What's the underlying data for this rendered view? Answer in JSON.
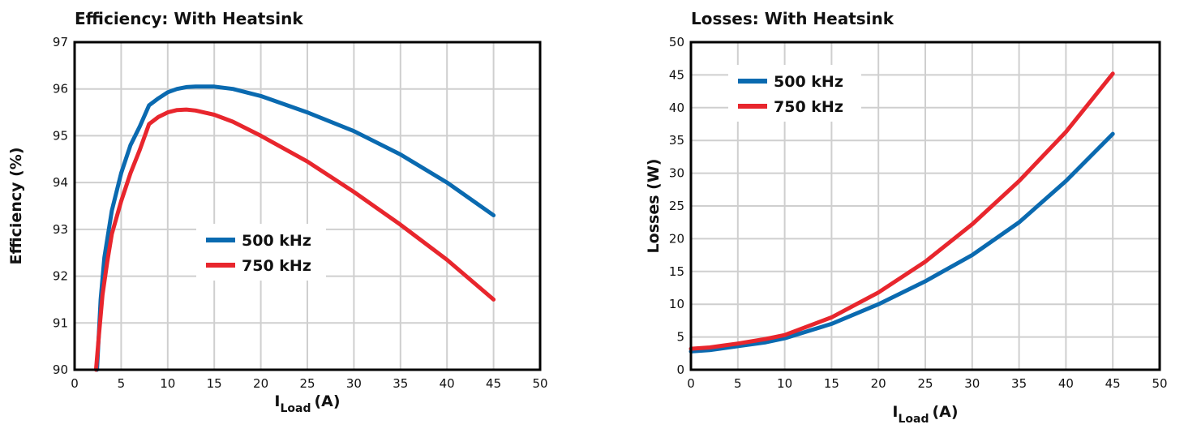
{
  "colors": {
    "series_500": "#0a6ab0",
    "series_750": "#e8262d"
  },
  "chart_data": [
    {
      "type": "line",
      "title": "Efficiency: With Heatsink",
      "xlabel": "I",
      "xlabel_sub": "Load",
      "xlabel_unit": "(A)",
      "ylabel": "Efficiency (%)",
      "xlim": [
        0,
        50
      ],
      "ylim": [
        90,
        97
      ],
      "xticks": [
        0,
        5,
        10,
        15,
        20,
        25,
        30,
        35,
        40,
        45,
        50
      ],
      "yticks": [
        90,
        91,
        92,
        93,
        94,
        95,
        96,
        97
      ],
      "grid": true,
      "legend": "center",
      "series": [
        {
          "name": "500 kHz",
          "color": "#0a6ab0",
          "x": [
            2.4,
            2.8,
            3.2,
            4.0,
            5.0,
            6.0,
            7.0,
            8.0,
            9.0,
            10.0,
            11.0,
            12.0,
            13.0,
            14.0,
            15.0,
            17.0,
            20.0,
            25.0,
            30.0,
            35.0,
            40.0,
            45.0
          ],
          "y": [
            90.0,
            91.5,
            92.4,
            93.4,
            94.2,
            94.8,
            95.2,
            95.65,
            95.8,
            95.93,
            96.0,
            96.04,
            96.05,
            96.05,
            96.05,
            96.0,
            95.85,
            95.5,
            95.1,
            94.6,
            94.0,
            93.3
          ]
        },
        {
          "name": "750 kHz",
          "color": "#e8262d",
          "x": [
            2.3,
            2.6,
            3.0,
            3.5,
            4.0,
            5.0,
            6.0,
            7.0,
            8.0,
            9.0,
            10.0,
            11.0,
            12.0,
            13.0,
            15.0,
            17.0,
            20.0,
            25.0,
            30.0,
            35.0,
            40.0,
            45.0
          ],
          "y": [
            90.0,
            90.7,
            91.6,
            92.3,
            92.9,
            93.6,
            94.2,
            94.7,
            95.25,
            95.4,
            95.5,
            95.55,
            95.56,
            95.54,
            95.45,
            95.3,
            95.0,
            94.45,
            93.8,
            93.1,
            92.35,
            91.5
          ]
        }
      ]
    },
    {
      "type": "line",
      "title": "Losses: With Heatsink",
      "xlabel": "I",
      "xlabel_sub": "Load",
      "xlabel_unit": "(A)",
      "ylabel": "Losses (W)",
      "xlim": [
        0,
        50
      ],
      "ylim": [
        0,
        50
      ],
      "xticks": [
        0,
        5,
        10,
        15,
        20,
        25,
        30,
        35,
        40,
        45,
        50
      ],
      "yticks": [
        0,
        5,
        10,
        15,
        20,
        25,
        30,
        35,
        40,
        45,
        50
      ],
      "grid": true,
      "legend": "top-left",
      "series": [
        {
          "name": "500 kHz",
          "color": "#0a6ab0",
          "x": [
            0,
            2,
            5,
            8,
            10,
            15,
            20,
            25,
            30,
            35,
            40,
            45
          ],
          "y": [
            2.8,
            3.0,
            3.6,
            4.2,
            4.8,
            7.0,
            10.0,
            13.5,
            17.5,
            22.5,
            28.8,
            36.0
          ]
        },
        {
          "name": "750 kHz",
          "color": "#e8262d",
          "x": [
            0,
            2,
            5,
            8,
            10,
            15,
            20,
            25,
            30,
            35,
            40,
            45
          ],
          "y": [
            3.2,
            3.4,
            4.0,
            4.7,
            5.3,
            8.0,
            11.8,
            16.5,
            22.2,
            28.8,
            36.3,
            45.2
          ]
        }
      ]
    }
  ]
}
